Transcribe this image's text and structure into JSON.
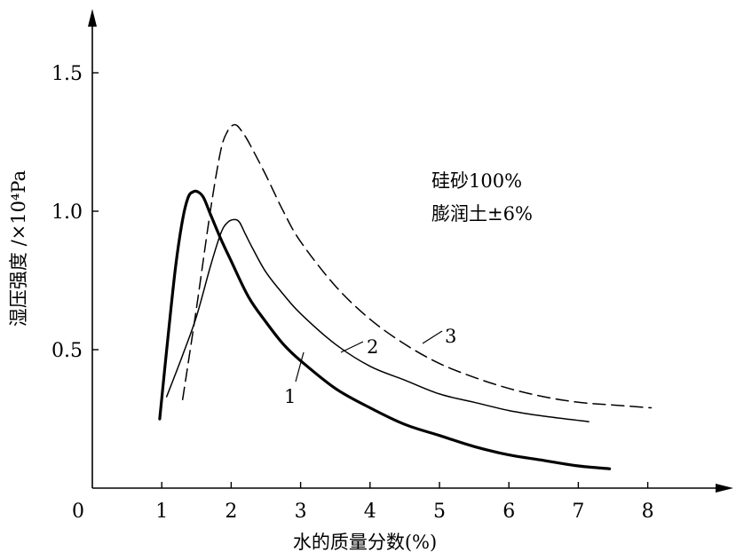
{
  "chart_data": {
    "type": "line",
    "xlabel": "水的质量分数(%)",
    "ylabel": "湿压强度 /×10⁴Pa",
    "xlim": [
      0,
      8.8
    ],
    "ylim": [
      0,
      1.55
    ],
    "x_ticks": [
      {
        "value": 0,
        "label": "0"
      },
      {
        "value": 1,
        "label": "1"
      },
      {
        "value": 2,
        "label": "2"
      },
      {
        "value": 3,
        "label": "3"
      },
      {
        "value": 4,
        "label": "4"
      },
      {
        "value": 5,
        "label": "5"
      },
      {
        "value": 6,
        "label": "6"
      },
      {
        "value": 7,
        "label": "7"
      },
      {
        "value": 8,
        "label": "8"
      }
    ],
    "y_ticks": [
      {
        "value": 0.5,
        "label": "0.5"
      },
      {
        "value": 1.0,
        "label": "1.0"
      },
      {
        "value": 1.5,
        "label": "1.5"
      }
    ],
    "annotations": [
      "硅砂100%",
      "膨润土±6%"
    ],
    "series": [
      {
        "label": "1",
        "style": "thick-solid",
        "x": [
          0.97,
          1.1,
          1.2,
          1.3,
          1.38,
          1.45,
          1.52,
          1.6,
          1.7,
          1.85,
          2.0,
          2.25,
          2.5,
          2.75,
          3.0,
          3.5,
          4.0,
          4.5,
          5.0,
          5.5,
          6.0,
          6.5,
          7.0,
          7.45
        ],
        "y": [
          0.25,
          0.57,
          0.8,
          0.97,
          1.05,
          1.07,
          1.07,
          1.05,
          0.99,
          0.9,
          0.82,
          0.69,
          0.6,
          0.52,
          0.46,
          0.36,
          0.29,
          0.23,
          0.19,
          0.15,
          0.12,
          0.1,
          0.08,
          0.07
        ]
      },
      {
        "label": "2",
        "style": "thin-solid",
        "x": [
          1.07,
          1.3,
          1.5,
          1.7,
          1.85,
          1.95,
          2.05,
          2.12,
          2.2,
          2.3,
          2.5,
          2.75,
          3.0,
          3.5,
          4.0,
          4.5,
          5.0,
          5.5,
          6.0,
          6.5,
          7.15
        ],
        "y": [
          0.33,
          0.48,
          0.62,
          0.8,
          0.92,
          0.96,
          0.97,
          0.96,
          0.92,
          0.87,
          0.78,
          0.7,
          0.63,
          0.52,
          0.44,
          0.39,
          0.34,
          0.31,
          0.28,
          0.26,
          0.24
        ]
      },
      {
        "label": "3",
        "style": "dashed",
        "x": [
          1.3,
          1.5,
          1.7,
          1.85,
          1.95,
          2.02,
          2.08,
          2.15,
          2.25,
          2.5,
          2.75,
          3.0,
          3.5,
          4.0,
          4.5,
          5.0,
          5.5,
          6.0,
          6.5,
          7.0,
          7.5,
          8.05
        ],
        "y": [
          0.32,
          0.65,
          1.0,
          1.22,
          1.29,
          1.31,
          1.31,
          1.29,
          1.25,
          1.13,
          1.0,
          0.89,
          0.73,
          0.61,
          0.52,
          0.45,
          0.4,
          0.36,
          0.33,
          0.31,
          0.3,
          0.29
        ]
      }
    ]
  }
}
